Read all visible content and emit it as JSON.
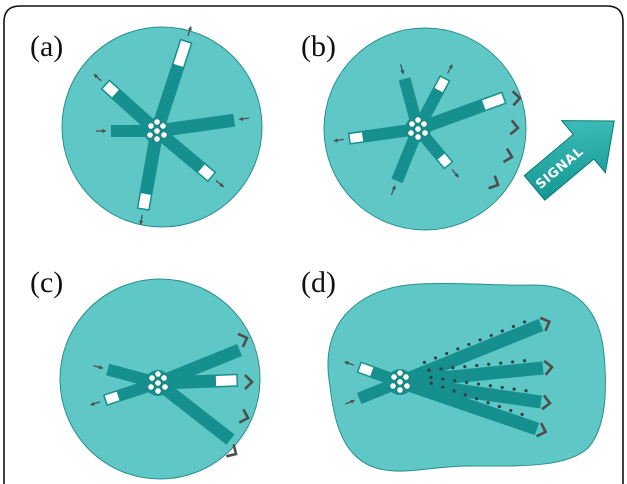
{
  "panels": [
    {
      "label": "(a)"
    },
    {
      "label": "(b)"
    },
    {
      "label": "(c)"
    },
    {
      "label": "(d)"
    }
  ],
  "signal_text": "SIGNAL",
  "colors": {
    "cell_fill": "#5fc7c5",
    "cell_edge": "#2a8f8e",
    "microtubule": "#15908e",
    "plus_cap": "#ffffff",
    "arrow": "#4a4a4a",
    "signal_arrow": "#1aa7a3",
    "frame": "#111111"
  }
}
